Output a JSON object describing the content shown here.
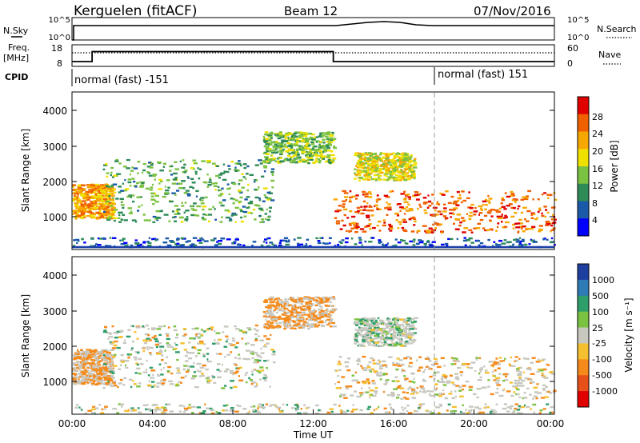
{
  "header": {
    "station": "Kerguelen (fitACF)",
    "beam": "Beam 12",
    "date": "07/Nov/2016"
  },
  "nsky_panel": {
    "left_label": "N.Sky",
    "right_label": "N.Search",
    "left_ticks": [
      "10^5",
      "10^0"
    ],
    "right_ticks": [
      "10^5",
      "10^0"
    ]
  },
  "freq_panel": {
    "left_label_1": "Freq.",
    "left_label_2": "[MHz]",
    "right_label": "Nave",
    "left_ticks": [
      "18",
      "8"
    ],
    "right_ticks": [
      "60",
      "0"
    ]
  },
  "cpid": {
    "label": "CPID",
    "modes": [
      {
        "text": "normal (fast) -151",
        "start_hour": 0
      },
      {
        "text": "normal (fast) 151",
        "start_hour": 18
      }
    ]
  },
  "power_panel": {
    "ylabel": "Slant Range [km]",
    "yticks": [
      "1000",
      "2000",
      "3000",
      "4000"
    ],
    "colorbar_label": "Power [dB]",
    "colorbar_ticks": [
      "4",
      "8",
      "12",
      "16",
      "20",
      "24",
      "28"
    ],
    "colors": [
      "#0000ff",
      "#1a5aa8",
      "#2e8b57",
      "#7cc242",
      "#f0e000",
      "#f7a800",
      "#f06000",
      "#e00000"
    ]
  },
  "velocity_panel": {
    "ylabel": "Slant Range [km]",
    "yticks": [
      "1000",
      "2000",
      "3000",
      "4000"
    ],
    "colorbar_label": "Velocity [m s⁻¹]",
    "colorbar_ticks": [
      "1000",
      "500",
      "100",
      "25",
      "-25",
      "-100",
      "-500",
      "-1000"
    ],
    "colors": [
      "#1f3fa0",
      "#2e7bb5",
      "#2e9e6a",
      "#7cc242",
      "#c8c8c0",
      "#f5c030",
      "#f58a1a",
      "#e8501a",
      "#e00000"
    ]
  },
  "xaxis": {
    "label": "Time UT",
    "ticks": [
      "00:00",
      "04:00",
      "08:00",
      "12:00",
      "16:00",
      "20:00",
      "00:00"
    ]
  },
  "chart_data": {
    "type": "heatmap",
    "x_range_hours": [
      0,
      24
    ],
    "y_range_km": [
      180,
      4600
    ],
    "freq_mhz_steps": [
      {
        "start_hour": 0,
        "value": 10
      },
      {
        "start_hour": 1,
        "value": 15
      },
      {
        "start_hour": 13,
        "value": 10
      }
    ],
    "nsky_level": "approximately constant near 10^5, small rise around 15:00 UT",
    "echo_regions": [
      {
        "name": "early near-range band",
        "hours": [
          0,
          2
        ],
        "range_km": [
          1000,
          2000
        ],
        "power_db": 22,
        "velocity_ms": -300
      },
      {
        "name": "morning scatter",
        "hours": [
          1.5,
          10
        ],
        "range_km": [
          900,
          2700
        ],
        "power_db": 12,
        "velocity_ms": 0
      },
      {
        "name": "pre-noon arc",
        "hours": [
          9.5,
          13
        ],
        "range_km": [
          2600,
          3500
        ],
        "power_db": 14,
        "velocity_ms": -300
      },
      {
        "name": "afternoon patch",
        "hours": [
          14,
          17
        ],
        "range_km": [
          2100,
          2900
        ],
        "power_db": 18,
        "velocity_ms": 100
      },
      {
        "name": "evening strong band",
        "hours": [
          13,
          24
        ],
        "range_km": [
          600,
          1800
        ],
        "power_db": 26,
        "velocity_ms": -100
      },
      {
        "name": "near-range clutter",
        "hours": [
          0,
          24
        ],
        "range_km": [
          180,
          450
        ],
        "power_db": 6,
        "velocity_ms": 0
      }
    ]
  }
}
